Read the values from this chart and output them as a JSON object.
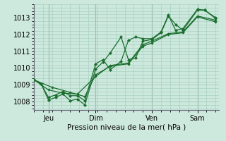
{
  "bg_color": "#cde8dc",
  "grid_color": "#a0ccbc",
  "line_color": "#1a6e2e",
  "xlabel": "Pression niveau de la mer( hPa )",
  "ylabel_ticks": [
    1008,
    1009,
    1010,
    1011,
    1012,
    1013
  ],
  "ylim": [
    1007.5,
    1013.8
  ],
  "xlim": [
    0,
    10.2
  ],
  "x_tick_positions": [
    0.8,
    3.4,
    6.5,
    9.0
  ],
  "x_tick_labels": [
    "Jeu",
    "Dim",
    "Ven",
    "Sam"
  ],
  "vlines_x": [
    0.8,
    3.4,
    6.5,
    9.0
  ],
  "line1_x": [
    0.0,
    0.4,
    0.8,
    1.2,
    1.6,
    2.0,
    2.4,
    2.8,
    3.4,
    3.8,
    4.2,
    4.8,
    5.2,
    5.6,
    6.0,
    6.5,
    7.0,
    7.4,
    7.8,
    8.2,
    9.0,
    9.4,
    10.0
  ],
  "line1_y": [
    1009.3,
    1009.05,
    1008.1,
    1008.25,
    1008.45,
    1008.05,
    1008.15,
    1007.8,
    1009.95,
    1010.35,
    1010.9,
    1011.85,
    1010.5,
    1010.6,
    1011.6,
    1011.7,
    1012.1,
    1013.1,
    1012.6,
    1012.25,
    1013.45,
    1013.45,
    1012.95
  ],
  "line2_x": [
    0.0,
    0.4,
    0.8,
    1.2,
    1.6,
    2.0,
    2.4,
    2.8,
    3.4,
    3.8,
    4.2,
    4.8,
    5.2,
    5.6,
    6.0,
    6.5,
    7.0,
    7.4,
    7.8,
    8.2,
    9.0,
    9.4,
    10.0
  ],
  "line2_y": [
    1009.3,
    1009.05,
    1008.25,
    1008.4,
    1008.6,
    1008.35,
    1008.35,
    1008.05,
    1010.25,
    1010.5,
    1009.9,
    1010.4,
    1011.65,
    1011.85,
    1011.75,
    1011.75,
    1012.15,
    1013.15,
    1012.25,
    1012.35,
    1013.5,
    1013.45,
    1013.0
  ],
  "line3_x": [
    0.0,
    1.0,
    2.0,
    2.8,
    3.4,
    4.2,
    5.2,
    6.0,
    6.5,
    7.4,
    8.2,
    9.0,
    10.0
  ],
  "line3_y": [
    1009.3,
    1008.85,
    1008.55,
    1008.3,
    1009.6,
    1010.1,
    1010.25,
    1011.3,
    1011.5,
    1012.0,
    1012.1,
    1013.05,
    1012.75
  ],
  "line4_x": [
    0.0,
    0.8,
    1.6,
    2.4,
    3.4,
    4.2,
    5.2,
    6.0,
    6.5,
    7.4,
    8.2,
    9.0,
    10.0
  ],
  "line4_y": [
    1009.3,
    1008.7,
    1008.5,
    1008.45,
    1009.5,
    1010.15,
    1010.3,
    1011.4,
    1011.6,
    1012.05,
    1012.15,
    1013.1,
    1012.85
  ]
}
